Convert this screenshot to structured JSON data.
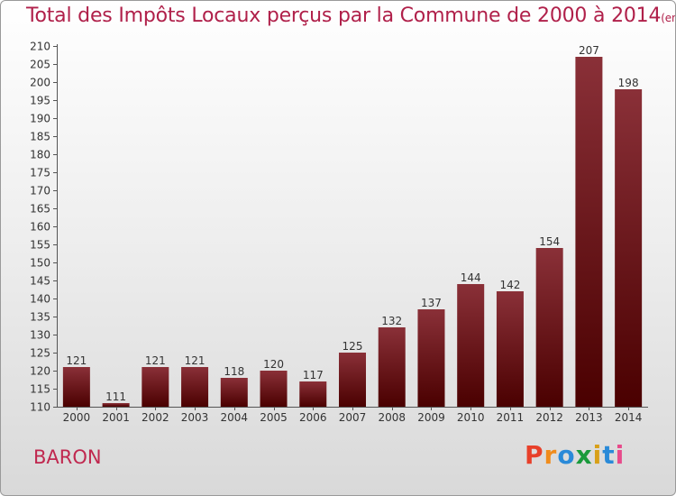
{
  "page": {
    "title_main": "Total des Impôts Locaux perçus par la Commune de 2000 à 2014",
    "title_unit": "(en milliers d'€)",
    "commune": "BARON",
    "logo": [
      "P",
      "r",
      "o",
      "x",
      "i",
      "t",
      "i"
    ]
  },
  "colors": {
    "bar_top": "#8a3038",
    "bar_bottom": "#4a0000",
    "title": "#b0204a",
    "logo": [
      "#e8402a",
      "#f08c1c",
      "#2a8ad8",
      "#1a9a3c",
      "#d8a018",
      "#2a8ad8",
      "#e84a8a"
    ]
  },
  "chart_data": {
    "type": "bar",
    "categories": [
      "2000",
      "2001",
      "2002",
      "2003",
      "2004",
      "2005",
      "2006",
      "2007",
      "2008",
      "2009",
      "2010",
      "2011",
      "2012",
      "2013",
      "2014"
    ],
    "values": [
      121,
      111,
      121,
      121,
      118,
      120,
      117,
      125,
      132,
      137,
      144,
      142,
      154,
      207,
      198
    ],
    "ylim": [
      110,
      210
    ],
    "ytick_step": 5,
    "grid": false
  }
}
